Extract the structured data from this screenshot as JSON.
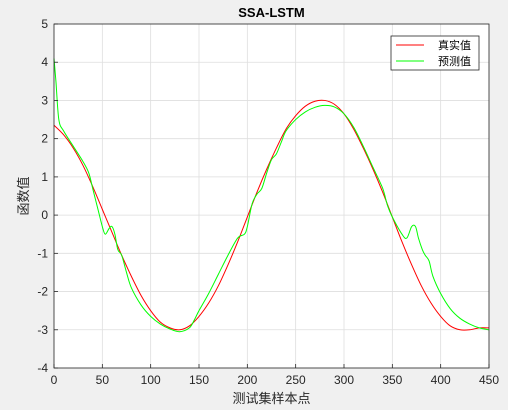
{
  "chart_data": {
    "type": "line",
    "title": "SSA-LSTM",
    "xlabel": "测试集样本点",
    "ylabel": "函数值",
    "xlim": [
      0,
      450
    ],
    "ylim": [
      -4,
      5
    ],
    "xticks": [
      "0",
      "50",
      "100",
      "150",
      "200",
      "250",
      "300",
      "350",
      "400",
      "450"
    ],
    "yticks": [
      "-4",
      "-3",
      "-2",
      "-1",
      "0",
      "1",
      "2",
      "3",
      "4",
      "5"
    ],
    "grid": true,
    "legend_position": "top-right",
    "series": [
      {
        "name": "真实值",
        "color": "#ff0000",
        "x": [
          0,
          10,
          20,
          30,
          40,
          50,
          60,
          70,
          80,
          90,
          100,
          110,
          120,
          130,
          140,
          150,
          160,
          170,
          180,
          190,
          200,
          210,
          220,
          230,
          240,
          250,
          260,
          270,
          280,
          290,
          300,
          310,
          320,
          330,
          340,
          350,
          360,
          370,
          380,
          390,
          400,
          410,
          420,
          430,
          440,
          450
        ],
        "values": [
          2.35,
          2.1,
          1.75,
          1.3,
          0.75,
          0.15,
          -0.45,
          -1.05,
          -1.6,
          -2.1,
          -2.5,
          -2.8,
          -2.95,
          -3.0,
          -2.9,
          -2.65,
          -2.3,
          -1.85,
          -1.3,
          -0.7,
          -0.05,
          0.6,
          1.2,
          1.75,
          2.25,
          2.6,
          2.85,
          2.98,
          3.0,
          2.9,
          2.65,
          2.25,
          1.75,
          1.2,
          0.6,
          -0.05,
          -0.7,
          -1.3,
          -1.85,
          -2.3,
          -2.65,
          -2.9,
          -3.0,
          -3.0,
          -2.95,
          -2.95
        ]
      },
      {
        "name": "预测值",
        "color": "#00ff00",
        "x": [
          0,
          2,
          5,
          10,
          20,
          30,
          36,
          40,
          45,
          50,
          53,
          57,
          60,
          63,
          66,
          70,
          75,
          80,
          90,
          100,
          110,
          120,
          130,
          140,
          145,
          150,
          160,
          170,
          180,
          190,
          197,
          200,
          205,
          210,
          215,
          220,
          225,
          230,
          235,
          240,
          250,
          260,
          270,
          280,
          290,
          300,
          310,
          320,
          330,
          340,
          345,
          350,
          360,
          365,
          370,
          374,
          377,
          381,
          384,
          388,
          392,
          400,
          410,
          420,
          430,
          440,
          450
        ],
        "values": [
          4.1,
          3.5,
          2.5,
          2.2,
          1.8,
          1.4,
          1.1,
          0.7,
          0.2,
          -0.3,
          -0.5,
          -0.35,
          -0.3,
          -0.5,
          -0.9,
          -1.05,
          -1.5,
          -1.9,
          -2.35,
          -2.65,
          -2.85,
          -2.98,
          -3.05,
          -2.95,
          -2.75,
          -2.5,
          -2.05,
          -1.55,
          -1.05,
          -0.6,
          -0.5,
          -0.3,
          0.3,
          0.55,
          0.7,
          1.1,
          1.45,
          1.6,
          1.9,
          2.2,
          2.5,
          2.7,
          2.82,
          2.87,
          2.83,
          2.65,
          2.3,
          1.8,
          1.25,
          0.7,
          0.25,
          -0.05,
          -0.5,
          -0.6,
          -0.3,
          -0.3,
          -0.6,
          -0.9,
          -1.05,
          -1.2,
          -1.6,
          -2.05,
          -2.45,
          -2.7,
          -2.85,
          -2.95,
          -3.0
        ]
      }
    ]
  }
}
